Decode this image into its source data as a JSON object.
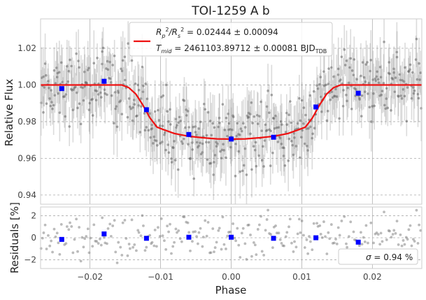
{
  "chart_data": [
    {
      "type": "scatter",
      "title": "TOI-1259 A b",
      "xlabel": "",
      "ylabel": "Relative Flux",
      "xlim": [
        -0.027,
        0.027
      ],
      "ylim": [
        0.935,
        1.036
      ],
      "grid": true,
      "y_ticks": [
        "0.94",
        "0.96",
        "0.98",
        "1.00",
        "1.02"
      ],
      "y_tick_values": [
        0.94,
        0.96,
        0.98,
        1.0,
        1.02
      ],
      "legend": {
        "placement": "top-center",
        "line1_main": "R",
        "line1_sub1": "p",
        "line1_sup1": "2",
        "line1_mid": "/R",
        "line1_sub2": "s",
        "line1_sup2": "2",
        "line1_rest": " = 0.02444 ± 0.00094",
        "line2_main": "T",
        "line2_sub1": "mid",
        "line2_rest": " = 2461103.89712 ± 0.00081 BJD",
        "line2_sub2": "TDB"
      },
      "colors": {
        "raw": "#7f7f7f",
        "binned": "#0000ff",
        "model": "#ee1111"
      },
      "binned": {
        "x": [
          -0.024,
          -0.018,
          -0.012,
          -0.006,
          0.0,
          0.006,
          0.012,
          0.018
        ],
        "y": [
          0.998,
          1.002,
          0.9865,
          0.973,
          0.9705,
          0.9715,
          0.988,
          0.9955
        ]
      },
      "model": {
        "x": [
          -0.027,
          -0.0155,
          -0.0145,
          -0.0135,
          -0.0125,
          -0.0115,
          -0.0105,
          -0.0095,
          -0.008,
          -0.006,
          -0.004,
          -0.002,
          0.0,
          0.002,
          0.004,
          0.006,
          0.008,
          0.0095,
          0.0105,
          0.0115,
          0.0125,
          0.0135,
          0.0145,
          0.0155,
          0.027
        ],
        "y": [
          1.0,
          1.0,
          0.9985,
          0.995,
          0.989,
          0.982,
          0.977,
          0.9755,
          0.9735,
          0.972,
          0.9712,
          0.9706,
          0.9705,
          0.9706,
          0.9712,
          0.972,
          0.9735,
          0.9755,
          0.977,
          0.982,
          0.989,
          0.995,
          0.9985,
          1.0,
          1.0
        ]
      }
    },
    {
      "type": "scatter",
      "title": "",
      "xlabel": "Phase",
      "ylabel": "Residuals [%]",
      "xlim": [
        -0.027,
        0.027
      ],
      "ylim": [
        -2.8,
        2.8
      ],
      "grid": true,
      "x_ticks": [
        "−0.02",
        "−0.01",
        "0.00",
        "0.01",
        "0.02"
      ],
      "x_tick_values": [
        -0.02,
        -0.01,
        0.0,
        0.01,
        0.02
      ],
      "y_ticks": [
        "−2",
        "0",
        "2"
      ],
      "y_tick_values": [
        -2,
        0,
        2
      ],
      "legend": {
        "placement": "lower-right",
        "sigma_symbol": "σ",
        "sigma_text": " = 0.94 %"
      },
      "binned": {
        "x": [
          -0.024,
          -0.018,
          -0.012,
          -0.006,
          0.0,
          0.006,
          0.012,
          0.018
        ],
        "y": [
          -0.15,
          0.35,
          -0.05,
          0.05,
          0.05,
          -0.05,
          0.0,
          -0.4
        ]
      }
    }
  ]
}
